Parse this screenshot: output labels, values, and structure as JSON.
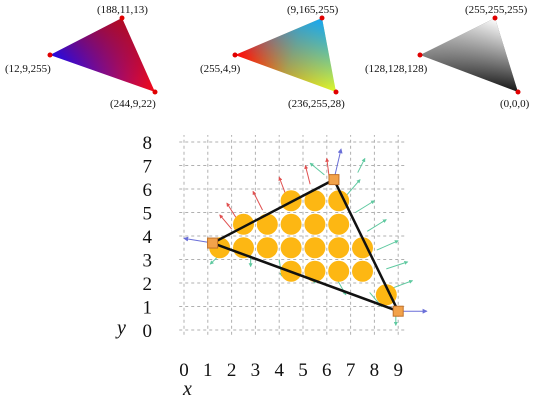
{
  "triangles": [
    {
      "id": "rgb-triangle",
      "vertices": [
        {
          "label": "(188,11,13)",
          "color": "#bc0b0d"
        },
        {
          "label": "(12,9,255)",
          "color": "#0c09ff"
        },
        {
          "label": "(244,9,22)",
          "color": "#f40916"
        }
      ]
    },
    {
      "id": "rainbow-triangle",
      "vertices": [
        {
          "label": "(9,165,255)",
          "color": "#09a5ff"
        },
        {
          "label": "(255,4,9)",
          "color": "#ff0409"
        },
        {
          "label": "(236,255,28)",
          "color": "#ecff1c"
        }
      ]
    },
    {
      "id": "gray-triangle",
      "vertices": [
        {
          "label": "(255,255,255)",
          "color": "#ffffff"
        },
        {
          "label": "(128,128,128)",
          "color": "#808080"
        },
        {
          "label": "(0,0,0)",
          "color": "#000000"
        }
      ]
    }
  ],
  "grid_plot": {
    "x_ticks": [
      "0",
      "1",
      "2",
      "3",
      "4",
      "5",
      "6",
      "7",
      "8",
      "9"
    ],
    "y_ticks": [
      "0",
      "1",
      "2",
      "3",
      "4",
      "5",
      "6",
      "7",
      "8"
    ],
    "x_label": "x",
    "y_label": "y",
    "triangle_vertices": [
      [
        1.2,
        3.7
      ],
      [
        6.3,
        6.4
      ],
      [
        9.0,
        0.8
      ]
    ],
    "pixel_samples": [
      [
        4.5,
        5.5
      ],
      [
        5.5,
        5.5
      ],
      [
        6.5,
        5.5
      ],
      [
        2.5,
        4.5
      ],
      [
        3.5,
        4.5
      ],
      [
        4.5,
        4.5
      ],
      [
        5.5,
        4.5
      ],
      [
        6.5,
        4.5
      ],
      [
        1.5,
        3.5
      ],
      [
        2.5,
        3.5
      ],
      [
        3.5,
        3.5
      ],
      [
        4.5,
        3.5
      ],
      [
        5.5,
        3.5
      ],
      [
        6.5,
        3.5
      ],
      [
        7.5,
        3.5
      ],
      [
        4.5,
        2.5
      ],
      [
        5.5,
        2.5
      ],
      [
        6.5,
        2.5
      ],
      [
        7.5,
        2.5
      ],
      [
        8.5,
        1.5
      ]
    ],
    "colors": {
      "triangle_edge": "#111111",
      "vertex_marker": "#f2a24a",
      "vertex_border": "#c2722a",
      "pixel_disc": "#fdb713",
      "red_arrow": "#e05050",
      "green_arrow": "#5fc9a0",
      "blue_arrow": "#6a6fd8",
      "grid": "#b0b0b0",
      "vertex_dot": "#e00000"
    }
  }
}
